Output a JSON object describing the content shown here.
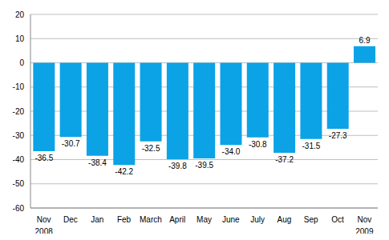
{
  "chart_data": {
    "type": "bar",
    "categories": [
      "Nov",
      "Dec",
      "Jan",
      "Feb",
      "March",
      "April",
      "May",
      "June",
      "July",
      "Aug",
      "Sep",
      "Oct",
      "Nov"
    ],
    "values": [
      -36.5,
      -30.7,
      -38.4,
      -42.2,
      -32.5,
      -39.8,
      -39.5,
      -34.0,
      -30.8,
      -37.2,
      -31.5,
      -27.3,
      6.9
    ],
    "value_labels": [
      "-36.5",
      "-30.7",
      "-38.4",
      "-42.2",
      "-32.5",
      "-39.8",
      "-39.5",
      "-34.0",
      "-30.8",
      "-37.2",
      "-31.5",
      "-27.3",
      "6.9"
    ],
    "annotations": [
      {
        "text": "2008",
        "x": 0
      },
      {
        "text": "2009",
        "x": 12
      }
    ],
    "color": "#0ba3e6",
    "ylim": [
      -60,
      20
    ],
    "yticks": [
      -60,
      -50,
      -40,
      -30,
      -20,
      -10,
      0,
      10,
      20
    ],
    "grid": true,
    "data_labels": true
  }
}
